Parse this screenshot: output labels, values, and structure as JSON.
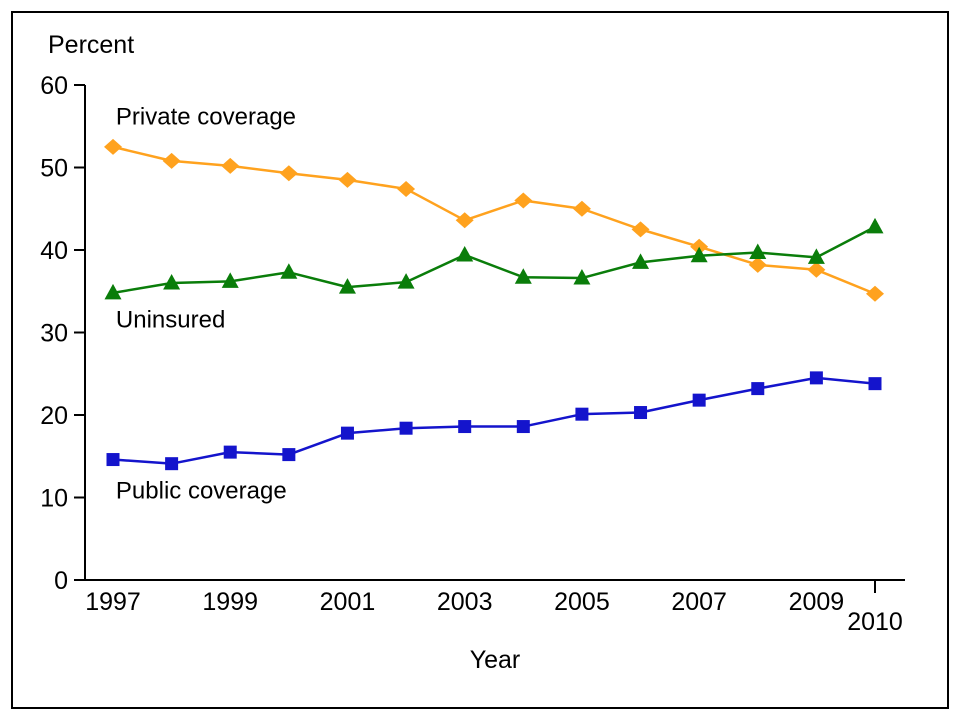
{
  "frame": {
    "background": "#ffffff",
    "border_color": "#000000"
  },
  "chart_data": {
    "type": "line",
    "title": "",
    "ylabel": "Percent",
    "xlabel": "Year",
    "ylim": [
      0,
      60
    ],
    "yticks": [
      0,
      10,
      20,
      30,
      40,
      50,
      60
    ],
    "grid": false,
    "legend_position": "inline-labels",
    "years": [
      1997,
      1998,
      1999,
      2000,
      2001,
      2002,
      2003,
      2004,
      2005,
      2006,
      2007,
      2008,
      2009,
      2010
    ],
    "xtick_labeled_years": [
      1997,
      1999,
      2001,
      2003,
      2005,
      2007,
      2009
    ],
    "end_tick": {
      "year": 2010,
      "label": "2010"
    },
    "series": [
      {
        "name": "Private coverage",
        "marker": "diamond",
        "color": "#FFA21E",
        "values": [
          52.5,
          50.8,
          50.2,
          49.3,
          48.5,
          47.4,
          43.6,
          46.0,
          45.0,
          42.5,
          40.4,
          38.2,
          37.6,
          34.7
        ],
        "label": {
          "text": "Private coverage",
          "x_year": 1997.05,
          "y_value": 55.2
        }
      },
      {
        "name": "Uninsured",
        "marker": "triangle",
        "color": "#0A7D0A",
        "values": [
          34.8,
          36.0,
          36.2,
          37.3,
          35.5,
          36.1,
          39.4,
          36.7,
          36.6,
          38.5,
          39.3,
          39.7,
          39.1,
          42.8
        ],
        "label": {
          "text": "Uninsured",
          "x_year": 1997.05,
          "y_value": 30.6
        }
      },
      {
        "name": "Public coverage",
        "marker": "square",
        "color": "#1414CC",
        "values": [
          14.6,
          14.1,
          15.5,
          15.2,
          17.8,
          18.4,
          18.6,
          18.6,
          20.1,
          20.3,
          21.8,
          23.2,
          24.5,
          23.8
        ],
        "label": {
          "text": "Public coverage",
          "x_year": 1997.05,
          "y_value": 9.9
        }
      }
    ]
  }
}
